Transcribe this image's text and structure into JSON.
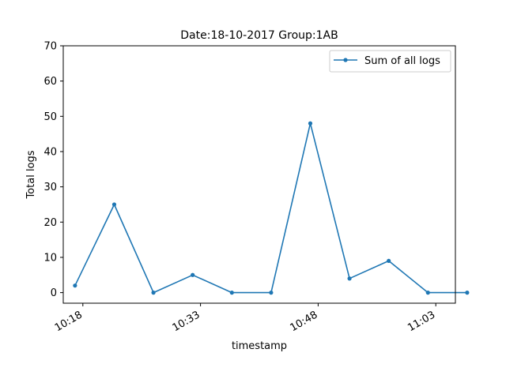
{
  "chart_data": {
    "type": "line",
    "title": "Date:18-10-2017  Group:1AB",
    "xlabel": "timestamp",
    "ylabel": "Total logs",
    "ylim": [
      -3,
      70
    ],
    "yticks": [
      0,
      10,
      20,
      30,
      40,
      50,
      60,
      70
    ],
    "xlim": [
      "10:15:30",
      "11:05:30"
    ],
    "xticks": [
      "10:18",
      "10:33",
      "10:48",
      "11:03"
    ],
    "x": [
      "10:17",
      "10:22",
      "10:27",
      "10:32",
      "10:37",
      "10:42",
      "10:47",
      "10:52",
      "10:57",
      "11:02",
      "11:07"
    ],
    "series": [
      {
        "name": "Sum of all logs",
        "color": "#1f77b4",
        "values": [
          2,
          25,
          0,
          5,
          0,
          0,
          48,
          4,
          9,
          0,
          0
        ]
      }
    ],
    "legend": "top-right",
    "grid": false
  }
}
